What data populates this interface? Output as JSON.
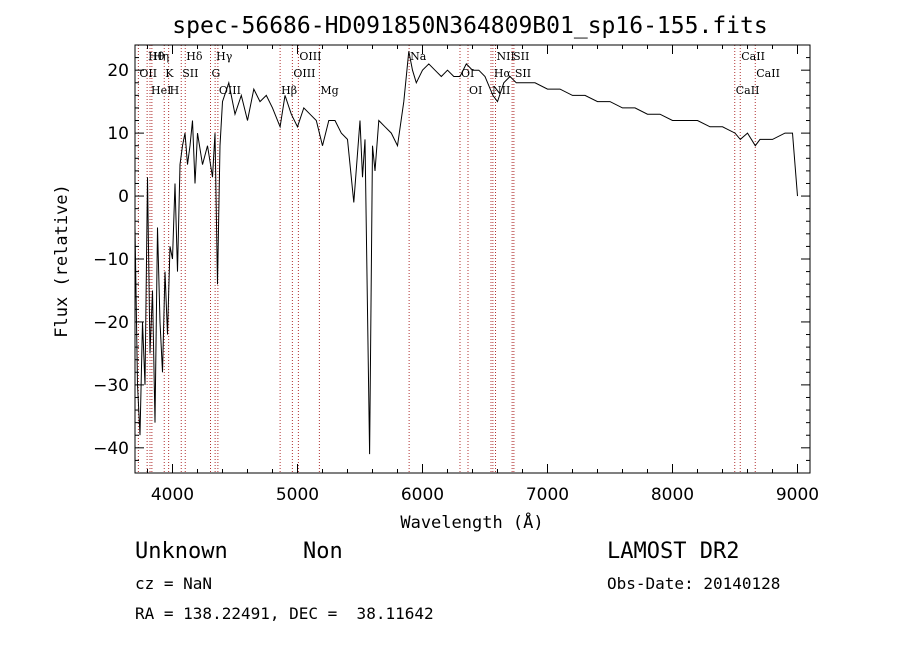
{
  "chart_data": {
    "type": "line",
    "title": "spec-56686-HD091850N364809B01_sp16-155.fits",
    "xlabel": "Wavelength (Å)",
    "ylabel": "Flux (relative)",
    "xlim": [
      3700,
      9100
    ],
    "ylim": [
      -44,
      24
    ],
    "xticks": [
      4000,
      5000,
      6000,
      7000,
      8000,
      9000
    ],
    "yticks": [
      -40,
      -30,
      -20,
      -10,
      0,
      10,
      20
    ],
    "grid": false,
    "series": [
      {
        "x": [
          3700,
          3720,
          3740,
          3760,
          3780,
          3800,
          3820,
          3840,
          3860,
          3880,
          3900,
          3920,
          3940,
          3960,
          3980,
          4000,
          4020,
          4040,
          4060,
          4080,
          4100,
          4120,
          4140,
          4160,
          4180,
          4200,
          4240,
          4280,
          4320,
          4340,
          4360,
          4380,
          4400,
          4450,
          4500,
          4550,
          4600,
          4650,
          4700,
          4750,
          4800,
          4861,
          4900,
          4950,
          5000,
          5050,
          5100,
          5150,
          5200,
          5250,
          5300,
          5350,
          5400,
          5450,
          5500,
          5520,
          5540,
          5577,
          5600,
          5620,
          5650,
          5700,
          5750,
          5800,
          5850,
          5890,
          5920,
          5950,
          6000,
          6050,
          6100,
          6150,
          6200,
          6250,
          6300,
          6350,
          6400,
          6450,
          6500,
          6563,
          6600,
          6650,
          6700,
          6750,
          6800,
          6900,
          7000,
          7100,
          7200,
          7300,
          7400,
          7500,
          7600,
          7700,
          7800,
          7900,
          8000,
          8100,
          8200,
          8300,
          8400,
          8500,
          8542,
          8600,
          8662,
          8700,
          8800,
          8900,
          8960,
          9000
        ],
        "y": [
          -5,
          -30,
          -38,
          -20,
          -30,
          3,
          -25,
          -15,
          -36,
          -5,
          -20,
          -28,
          -12,
          -22,
          -8,
          -10,
          2,
          -12,
          5,
          8,
          10,
          5,
          8,
          12,
          2,
          10,
          5,
          8,
          3,
          10,
          -14,
          8,
          15,
          18,
          13,
          16,
          12,
          17,
          15,
          16,
          14,
          11,
          16,
          13,
          11,
          14,
          13,
          12,
          8,
          12,
          12,
          10,
          9,
          -1,
          12,
          3,
          9,
          -41,
          8,
          4,
          12,
          11,
          10,
          8,
          15,
          23,
          20,
          18,
          20,
          21,
          20,
          19,
          20,
          19,
          19,
          21,
          20,
          20,
          19,
          16,
          15,
          18,
          19,
          18,
          18,
          18,
          17,
          17,
          16,
          16,
          15,
          15,
          14,
          14,
          13,
          13,
          12,
          12,
          12,
          11,
          11,
          10,
          9,
          10,
          8,
          9,
          9,
          10,
          10,
          0
        ]
      }
    ],
    "lines": [
      {
        "label": "Hθ",
        "x": 3797
      },
      {
        "label": "OII",
        "x": 3727
      },
      {
        "label": "HeI",
        "x": 3820
      },
      {
        "label": "Hη",
        "x": 3835
      },
      {
        "label": "K",
        "x": 3934
      },
      {
        "label": "H",
        "x": 3969
      },
      {
        "label": "Hδ",
        "x": 4102
      },
      {
        "label": "SII",
        "x": 4070
      },
      {
        "label": "OIII",
        "x": 4363
      },
      {
        "label": "Hγ",
        "x": 4341
      },
      {
        "label": "G",
        "x": 4304
      },
      {
        "label": "Hβ",
        "x": 4861
      },
      {
        "label": "OIII",
        "x": 5007
      },
      {
        "label": "OIII",
        "x": 4959
      },
      {
        "label": "Mg",
        "x": 5175
      },
      {
        "label": "Na",
        "x": 5893
      },
      {
        "label": "OI",
        "x": 6300
      },
      {
        "label": "OI",
        "x": 6364
      },
      {
        "label": "NII",
        "x": 6584
      },
      {
        "label": "Hα",
        "x": 6563
      },
      {
        "label": "NII",
        "x": 6548
      },
      {
        "label": "SII",
        "x": 6717
      },
      {
        "label": "SII",
        "x": 6731
      },
      {
        "label": "CaII",
        "x": 8498
      },
      {
        "label": "CaII",
        "x": 8542
      },
      {
        "label": "CaII",
        "x": 8662
      }
    ]
  },
  "info": {
    "class": "Unknown",
    "subclass": "Non",
    "survey": "LAMOST DR2",
    "cz": "cz = NaN",
    "obs_date": "Obs-Date: 20140128",
    "coords": "RA = 138.22491, DEC =  38.11642"
  },
  "colors": {
    "spectrum": "#000000",
    "line_marker": "#b03030",
    "axes": "#000000"
  }
}
